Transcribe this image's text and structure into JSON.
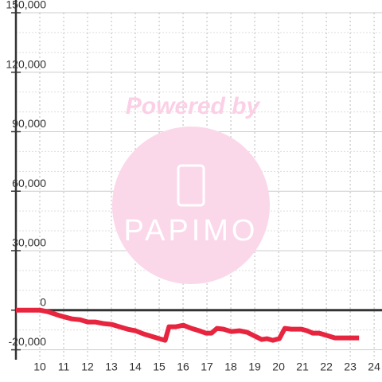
{
  "chart_data": {
    "type": "line",
    "x": [
      9,
      10,
      10.34,
      10.84,
      11.34,
      11.67,
      12.01,
      12.34,
      12.68,
      13.01,
      13.34,
      13.68,
      14.01,
      14.35,
      14.68,
      15.01,
      15.25,
      15.41,
      15.68,
      16.01,
      16.35,
      16.68,
      16.95,
      17.19,
      17.42,
      17.69,
      18.02,
      18.36,
      18.69,
      19.02,
      19.29,
      19.52,
      19.76,
      20.03,
      20.26,
      20.53,
      20.96,
      21.2,
      21.43,
      21.7,
      22.03,
      22.36,
      22.86,
      23.37
    ],
    "series": [
      {
        "color": "#e8253f",
        "values": [
          0,
          0,
          -800,
          -2800,
          -4400,
          -4800,
          -6000,
          -6000,
          -6800,
          -7200,
          -8400,
          -9600,
          -10400,
          -12000,
          -13200,
          -14400,
          -15200,
          -8400,
          -8400,
          -7600,
          -9200,
          -10400,
          -11600,
          -11600,
          -9200,
          -9600,
          -10800,
          -10400,
          -11200,
          -13200,
          -14800,
          -14400,
          -15200,
          -14400,
          -9200,
          -9600,
          -9600,
          -10400,
          -11600,
          -11600,
          -12800,
          -14000,
          -14000,
          -14000
        ]
      }
    ],
    "xlim": [
      9,
      24.33
    ],
    "ylim": [
      -25000,
      150000
    ],
    "xticks": [
      10,
      11,
      12,
      13,
      14,
      15,
      16,
      17,
      18,
      19,
      20,
      21,
      22,
      23,
      24
    ],
    "yticks": [
      {
        "value": 150000,
        "label": "150,000"
      },
      {
        "value": 120000,
        "label": "120,000"
      },
      {
        "value": 90000,
        "label": "90,000"
      },
      {
        "value": 60000,
        "label": "60,000"
      },
      {
        "value": 30000,
        "label": "30,000"
      },
      0,
      {
        "value": -20000,
        "label": "-20,000"
      }
    ],
    "minor_yticks": [
      -10000,
      10000,
      20000,
      40000,
      50000,
      70000,
      80000,
      100000,
      110000,
      130000,
      140000
    ],
    "grid": true,
    "zero_line": true,
    "watermark": [
      "Powered by",
      "PAPIMO"
    ]
  }
}
